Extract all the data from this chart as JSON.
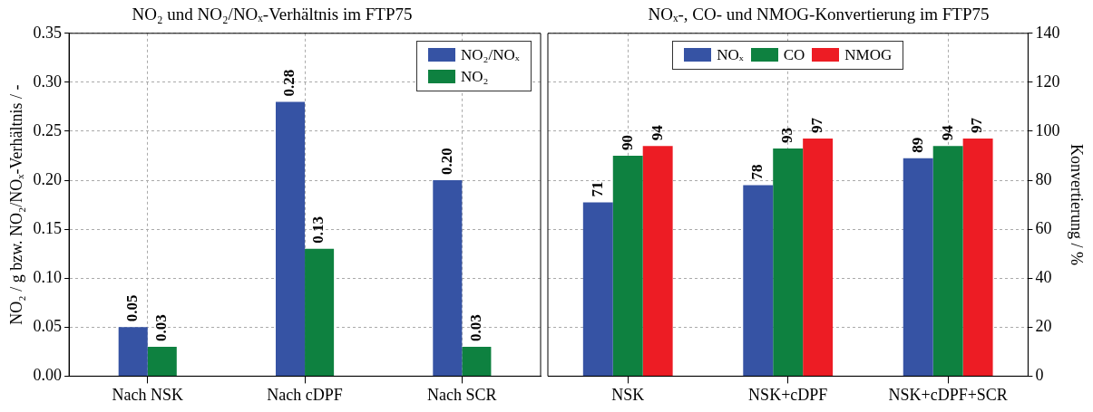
{
  "chart_data": [
    {
      "type": "bar",
      "title": "NO₂ und NO₂/NOₓ-Verhältnis im FTP75",
      "ylabel": "NO₂ / g bzw. NO₂/NOₓ-Verhältnis / -",
      "categories": [
        "Nach NSK",
        "Nach cDPF",
        "Nach SCR"
      ],
      "series": [
        {
          "name": "NO₂/NOₓ",
          "color": "#3653a4",
          "values": [
            0.05,
            0.28,
            0.2
          ],
          "value_labels": [
            "0.05",
            "0.28",
            "0.20"
          ]
        },
        {
          "name": "NO₂",
          "color": "#0e8140",
          "values": [
            0.03,
            0.13,
            0.03
          ],
          "value_labels": [
            "0.03",
            "0.13",
            "0.03"
          ]
        }
      ],
      "ylim": [
        0,
        0.35
      ],
      "yticks": [
        {
          "value": 0,
          "label": "0.00"
        },
        {
          "value": 0.05,
          "label": "0.05"
        },
        {
          "value": 0.1,
          "label": "0.10"
        },
        {
          "value": 0.15,
          "label": "0.15"
        },
        {
          "value": 0.2,
          "label": "0.20"
        },
        {
          "value": 0.25,
          "label": "0.25"
        },
        {
          "value": 0.3,
          "label": "0.30"
        },
        {
          "value": 0.35,
          "label": "0.35"
        }
      ],
      "grid": true,
      "legend": "top right"
    },
    {
      "type": "bar",
      "title": "NOₓ-, CO- und NMOG-Konvertierung im FTP75",
      "y2label": "Konvertierung / %",
      "categories": [
        "NSK",
        "NSK+cDPF",
        "NSK+cDPF+SCR"
      ],
      "series": [
        {
          "name": "NOₓ",
          "color": "#3653a4",
          "values": [
            71,
            78,
            89
          ],
          "axis": "y2"
        },
        {
          "name": "CO",
          "color": "#0e8140",
          "values": [
            90,
            93,
            94
          ],
          "axis": "y2"
        },
        {
          "name": "NMOG",
          "color": "#ed1c24",
          "values": [
            94,
            97,
            97
          ],
          "axis": "y2"
        }
      ],
      "y2lim": [
        0,
        140
      ],
      "y2ticks": [
        0,
        20,
        40,
        60,
        80,
        100,
        120,
        140
      ],
      "grid": true,
      "legend": "top",
      "data_labels": true
    }
  ]
}
